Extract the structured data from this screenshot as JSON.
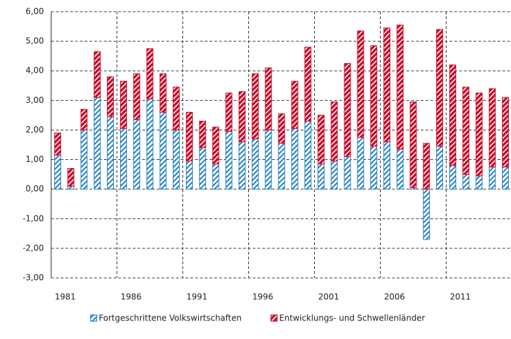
{
  "chart_data": {
    "type": "stacked-bar",
    "categories": [
      "1981",
      null,
      null,
      null,
      null,
      "1986",
      null,
      null,
      null,
      null,
      "1991",
      null,
      null,
      null,
      null,
      "1996",
      null,
      null,
      null,
      null,
      "2001",
      null,
      null,
      null,
      null,
      "2006",
      null,
      null,
      null,
      null,
      "2011",
      null,
      null,
      null,
      null
    ],
    "series": [
      {
        "name": "Fortgeschrittene Volkswirtschaften",
        "color": "#1f7fc4",
        "values": [
          1.15,
          0.1,
          2.0,
          3.1,
          2.45,
          2.05,
          2.35,
          3.05,
          2.6,
          2.0,
          0.95,
          1.4,
          0.85,
          1.95,
          1.6,
          1.7,
          2.0,
          1.55,
          2.05,
          2.3,
          0.85,
          0.95,
          1.1,
          1.75,
          1.45,
          1.6,
          1.35,
          0.05,
          -1.7,
          1.45,
          0.8,
          0.5,
          0.45,
          0.75,
          0.75
        ]
      },
      {
        "name": "Entwicklungs- und Schwellenländer",
        "color": "#c8102e",
        "values": [
          0.75,
          0.6,
          0.7,
          1.55,
          1.35,
          1.6,
          1.55,
          1.7,
          1.3,
          1.45,
          1.65,
          0.9,
          1.25,
          1.3,
          1.7,
          2.2,
          2.1,
          1.0,
          1.6,
          2.5,
          1.65,
          2.0,
          3.15,
          3.6,
          3.4,
          3.85,
          4.2,
          2.9,
          1.55,
          3.95,
          3.4,
          2.95,
          2.8,
          2.65,
          2.35
        ]
      }
    ],
    "ylim": [
      -3,
      6
    ],
    "yticks": [
      {
        "value": -3,
        "label": "-3,00"
      },
      {
        "value": -2,
        "label": "-2,00"
      },
      {
        "value": -1,
        "label": "-1,00"
      },
      {
        "value": 0,
        "label": "0,00"
      },
      {
        "value": 1,
        "label": "1,00"
      },
      {
        "value": 2,
        "label": "2,00"
      },
      {
        "value": 3,
        "label": "3,00"
      },
      {
        "value": 4,
        "label": "4,00"
      },
      {
        "value": 5,
        "label": "5,00"
      },
      {
        "value": 6,
        "label": "6,00"
      }
    ],
    "grid": true
  }
}
